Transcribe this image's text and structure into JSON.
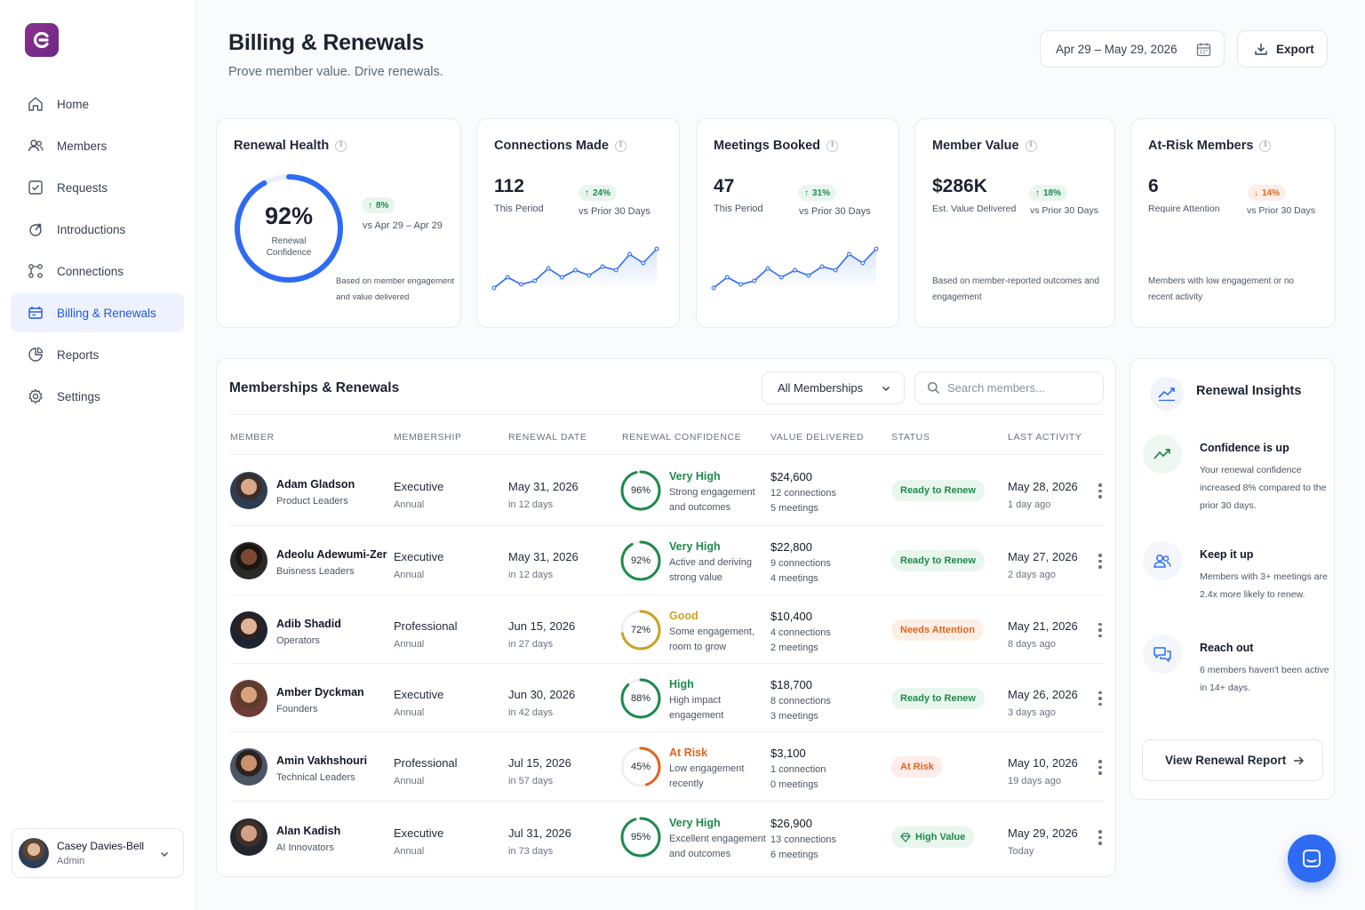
{
  "nav": {
    "items": [
      {
        "label": "Home",
        "icon": "home-icon"
      },
      {
        "label": "Members",
        "icon": "members-icon"
      },
      {
        "label": "Requests",
        "icon": "requests-icon"
      },
      {
        "label": "Introductions",
        "icon": "introductions-icon"
      },
      {
        "label": "Connections",
        "icon": "connections-icon"
      },
      {
        "label": "Billing & Renewals",
        "icon": "billing-icon",
        "active": true
      },
      {
        "label": "Reports",
        "icon": "reports-icon"
      },
      {
        "label": "Settings",
        "icon": "settings-icon"
      }
    ]
  },
  "user": {
    "name": "Casey Davies-Bell",
    "role": "Admin"
  },
  "header": {
    "title": "Billing & Renewals",
    "subtitle": "Prove member value. Drive renewals.",
    "date_range": "Apr 29 – May 29, 2026",
    "export_label": "Export"
  },
  "kpis": {
    "renewal_health": {
      "title": "Renewal Health",
      "value": "92%",
      "value_label_1": "Renewal",
      "value_label_2": "Confidence",
      "percent": 92,
      "delta": "8%",
      "delta_label": "vs Apr 29 – Apr 29",
      "note": "Based on member engagement and value delivered"
    },
    "connections": {
      "title": "Connections Made",
      "value": "112",
      "label": "This Period",
      "delta": "24%",
      "delta_label": "vs Prior 30 Days",
      "trend": [
        3,
        9,
        5,
        7,
        14,
        9,
        13,
        10,
        15,
        13,
        22,
        17,
        25
      ]
    },
    "meetings": {
      "title": "Meetings Booked",
      "value": "47",
      "label": "This Period",
      "delta": "31%",
      "delta_label": "vs Prior 30 Days",
      "trend": [
        3,
        9,
        5,
        7,
        14,
        9,
        13,
        10,
        15,
        13,
        22,
        17,
        25
      ]
    },
    "member_value": {
      "title": "Member Value",
      "value": "$286K",
      "label": "Est. Value Delivered",
      "delta": "18%",
      "delta_label": "vs Prior 30 Days",
      "note": "Based on member-reported outcomes and engagement"
    },
    "at_risk": {
      "title": "At-Risk Members",
      "value": "6",
      "label": "Require Attention",
      "delta": "14%",
      "delta_label": "vs Prior 30 Days",
      "note": "Members with low engagement or no recent activity"
    }
  },
  "table": {
    "title": "Memberships & Renewals",
    "filter_value": "All Memberships",
    "search_placeholder": "Search members...",
    "columns": [
      "MEMBER",
      "MEMBERSHIP",
      "RENEWAL DATE",
      "RENEWAL CONFIDENCE",
      "VALUE DELIVERED",
      "STATUS",
      "LAST ACTIVITY"
    ],
    "rows": [
      {
        "name": "Adam Gladson",
        "group": "Product Leaders",
        "membership": "Executive",
        "billing": "Annual",
        "renewal_date": "May 31, 2026",
        "renewal_in": "in 12 days",
        "confidence_pct": 96,
        "confidence_text": "96%",
        "confidence_label": "Very High",
        "confidence_color": "#1f8a4c",
        "desc1": "Strong engagement",
        "desc2": "and outcomes",
        "value": "$24,600",
        "connections": "12 connections",
        "meetings": "5 meetings",
        "status": "Ready to Renew",
        "status_color": "green",
        "last_date": "May 28, 2026",
        "last_ago": "1 day ago"
      },
      {
        "name": "Adeolu Adewumi-Zer",
        "group": "Buisness Leaders",
        "membership": "Executive",
        "billing": "Annual",
        "renewal_date": "May 31, 2026",
        "renewal_in": "in 12 days",
        "confidence_pct": 92,
        "confidence_text": "92%",
        "confidence_label": "Very High",
        "confidence_color": "#1f8a4c",
        "desc1": "Active and deriving",
        "desc2": "strong value",
        "value": "$22,800",
        "connections": "9 connections",
        "meetings": "4 meetings",
        "status": "Ready to Renew",
        "status_color": "green",
        "last_date": "May 27, 2026",
        "last_ago": "2 days ago"
      },
      {
        "name": "Adib Shadid",
        "group": "Operators",
        "membership": "Professional",
        "billing": "Annual",
        "renewal_date": "Jun 15, 2026",
        "renewal_in": "in 27 days",
        "confidence_pct": 72,
        "confidence_text": "72%",
        "confidence_label": "Good",
        "confidence_color": "#c9a227",
        "desc1": "Some engagement,",
        "desc2": "room to grow",
        "value": "$10,400",
        "connections": "4 connections",
        "meetings": "2 meetings",
        "status": "Needs Attention",
        "status_color": "orange",
        "last_date": "May 21, 2026",
        "last_ago": "8 days ago"
      },
      {
        "name": "Amber Dyckman",
        "group": "Founders",
        "membership": "Executive",
        "billing": "Annual",
        "renewal_date": "Jun 30, 2026",
        "renewal_in": "in 42 days",
        "confidence_pct": 88,
        "confidence_text": "88%",
        "confidence_label": "High",
        "confidence_color": "#1f8a4c",
        "desc1": "High impact",
        "desc2": "engagement",
        "value": "$18,700",
        "connections": "8 connections",
        "meetings": "3 meetings",
        "status": "Ready to Renew",
        "status_color": "green",
        "last_date": "May 26, 2026",
        "last_ago": "3 days ago"
      },
      {
        "name": "Amin Vakhshouri",
        "group": "Technical Leaders",
        "membership": "Professional",
        "billing": "Annual",
        "renewal_date": "Jul 15, 2026",
        "renewal_in": "in 57 days",
        "confidence_pct": 45,
        "confidence_text": "45%",
        "confidence_label": "At Risk",
        "confidence_color": "#e0651f",
        "desc1": "Low engagement",
        "desc2": "recently",
        "value": "$3,100",
        "connections": "1 connection",
        "meetings": "0 meetings",
        "status": "At Risk",
        "status_color": "red",
        "last_date": "May 10, 2026",
        "last_ago": "19 days ago"
      },
      {
        "name": "Alan Kadish",
        "group": "AI Innovators",
        "membership": "Executive",
        "billing": "Annual",
        "renewal_date": "Jul 31, 2026",
        "renewal_in": "in 73 days",
        "confidence_pct": 95,
        "confidence_text": "95%",
        "confidence_label": "Very High",
        "confidence_color": "#1f8a4c",
        "desc1": "Excellent engagement",
        "desc2": "and outcomes",
        "value": "$26,900",
        "connections": "13 connections",
        "meetings": "6 meetings",
        "status": "High Value",
        "status_color": "green",
        "last_date": "May 29, 2026",
        "last_ago": "Today"
      }
    ]
  },
  "insights": {
    "title": "Renewal Insights",
    "items": [
      {
        "title": "Confidence is up",
        "text": "Your renewal confidence increased 8% compared to the prior 30 days.",
        "icon": "trend-up-icon"
      },
      {
        "title": "Keep it up",
        "text": "Members with 3+ meetings are 2.4x more likely to renew.",
        "icon": "people-icon"
      },
      {
        "title": "Reach out",
        "text": "6 members haven't been active in 14+ days.",
        "icon": "chat-bubbles-icon"
      }
    ],
    "button_label": "View Renewal Report"
  },
  "colors": {
    "accent": "#2f6bf2",
    "green": "#1f8a4c",
    "orange": "#e0651f",
    "gold": "#c9a227",
    "brand": "#7d2c8c"
  }
}
